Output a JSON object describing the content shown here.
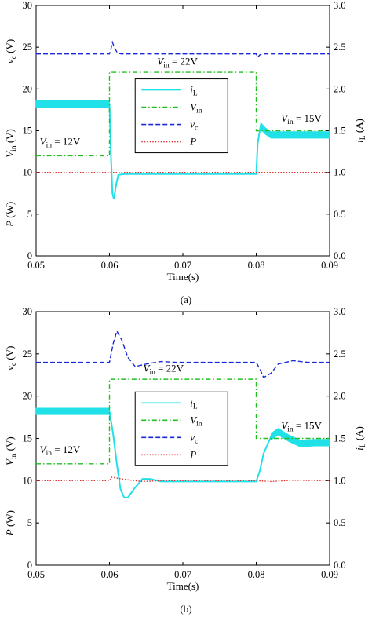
{
  "chart_data": [
    {
      "type": "line",
      "caption": "(a)",
      "xlabel": "Time(s)",
      "xlim": [
        0.05,
        0.09
      ],
      "xticks": [
        "0.05",
        "0.06",
        "0.07",
        "0.08",
        "0.09"
      ],
      "ylim": [
        0,
        30
      ],
      "yticks": [
        "0",
        "5",
        "10",
        "15",
        "20",
        "25",
        "30"
      ],
      "y2lim": [
        0,
        3.0
      ],
      "y2ticks": [
        "0.0",
        "0.5",
        "1.0",
        "1.5",
        "2.0",
        "2.5",
        "3.0"
      ],
      "left_labels": [
        {
          "main": "v",
          "sub": "c",
          "unit": " (V)",
          "y": 24.5
        },
        {
          "main": "V",
          "sub": "in",
          "unit": " (V)",
          "y": 13.5
        },
        {
          "main": "P",
          "sub": "",
          "unit": " (W)",
          "y": 5
        }
      ],
      "right_label": {
        "main": "i",
        "sub": "L",
        "unit": " (A)"
      },
      "legend": [
        {
          "main": "i",
          "sub": "L",
          "color": "#20e0e8",
          "dash": "solid"
        },
        {
          "main": "V",
          "sub": "in",
          "color": "#20c020",
          "dash": "dashdot"
        },
        {
          "main": "v",
          "sub": "c",
          "color": "#1a2ad8",
          "dash": "dash"
        },
        {
          "main": "P",
          "sub": "",
          "color": "#e03030",
          "dash": "dot"
        }
      ],
      "annotations": [
        {
          "main": "V",
          "sub": "in",
          "rest": " = 22V",
          "x": 0.0665,
          "y": 22.9
        },
        {
          "main": "V",
          "sub": "in",
          "rest": " = 12V",
          "x": 0.0505,
          "y": 13.3
        },
        {
          "main": "V",
          "sub": "in",
          "rest": " = 15V",
          "x": 0.0834,
          "y": 16.1
        }
      ],
      "series": [
        {
          "name": "iL",
          "color": "#20e0e8",
          "axis": "right",
          "x": [
            0.05,
            0.06,
            0.0602,
            0.0604,
            0.0606,
            0.0609,
            0.0612,
            0.062,
            0.08,
            0.0802,
            0.0806,
            0.0812,
            0.082,
            0.09
          ],
          "y": [
            1.82,
            1.82,
            1.2,
            0.75,
            0.68,
            0.85,
            0.97,
            0.98,
            0.98,
            1.35,
            1.56,
            1.5,
            1.45,
            1.45
          ],
          "band": [
            [
              0.05,
              0.06,
              0.08
            ],
            [
              0.0803,
              0.09,
              0.08
            ]
          ]
        },
        {
          "name": "Vin",
          "color": "#20c020",
          "axis": "left",
          "x": [
            0.05,
            0.06,
            0.06,
            0.08,
            0.08,
            0.09
          ],
          "y": [
            12,
            12,
            22,
            22,
            15,
            15
          ]
        },
        {
          "name": "vc",
          "color": "#1a2ad8",
          "axis": "left",
          "x": [
            0.05,
            0.06,
            0.0602,
            0.0604,
            0.0607,
            0.0611,
            0.0616,
            0.08,
            0.0802,
            0.0805,
            0.0809,
            0.09
          ],
          "y": [
            24.2,
            24.2,
            24.8,
            25.6,
            24.9,
            24.3,
            24.2,
            24.2,
            23.8,
            24.1,
            24.2,
            24.2
          ]
        },
        {
          "name": "P",
          "color": "#e03030",
          "axis": "left",
          "x": [
            0.05,
            0.09
          ],
          "y": [
            10,
            10
          ]
        }
      ]
    },
    {
      "type": "line",
      "caption": "(b)",
      "xlabel": "Time(s)",
      "xlim": [
        0.05,
        0.09
      ],
      "xticks": [
        "0.05",
        "0.06",
        "0.07",
        "0.08",
        "0.09"
      ],
      "ylim": [
        0,
        30
      ],
      "yticks": [
        "0",
        "5",
        "10",
        "15",
        "20",
        "25",
        "30"
      ],
      "y2lim": [
        0,
        3.0
      ],
      "y2ticks": [
        "0.0",
        "0.5",
        "1.0",
        "1.5",
        "2.0",
        "2.5",
        "3.0"
      ],
      "left_labels": [
        {
          "main": "v",
          "sub": "c",
          "unit": " (V)",
          "y": 24.5
        },
        {
          "main": "V",
          "sub": "in",
          "unit": " (V)",
          "y": 13.5
        },
        {
          "main": "P",
          "sub": "",
          "unit": " (W)",
          "y": 5
        }
      ],
      "right_label": {
        "main": "i",
        "sub": "L",
        "unit": " (A)"
      },
      "legend": [
        {
          "main": "i",
          "sub": "L",
          "color": "#20e0e8",
          "dash": "solid"
        },
        {
          "main": "V",
          "sub": "in",
          "color": "#20c020",
          "dash": "dashdot"
        },
        {
          "main": "v",
          "sub": "c",
          "color": "#1a2ad8",
          "dash": "dash"
        },
        {
          "main": "P",
          "sub": "",
          "color": "#e03030",
          "dash": "dot"
        }
      ],
      "annotations": [
        {
          "main": "V",
          "sub": "in",
          "rest": " = 22V",
          "x": 0.0646,
          "y": 22.9
        },
        {
          "main": "V",
          "sub": "in",
          "rest": " = 12V",
          "x": 0.0505,
          "y": 13.3
        },
        {
          "main": "V",
          "sub": "in",
          "rest": " = 15V",
          "x": 0.0834,
          "y": 16.1
        }
      ],
      "series": [
        {
          "name": "iL",
          "color": "#20e0e8",
          "axis": "right",
          "x": [
            0.05,
            0.06,
            0.0605,
            0.061,
            0.0615,
            0.062,
            0.0625,
            0.0635,
            0.0645,
            0.0655,
            0.067,
            0.08,
            0.0805,
            0.081,
            0.082,
            0.083,
            0.0845,
            0.086,
            0.088,
            0.09
          ],
          "y": [
            1.82,
            1.82,
            1.55,
            1.2,
            0.9,
            0.8,
            0.8,
            0.92,
            1.02,
            1.02,
            0.99,
            0.99,
            1.12,
            1.32,
            1.52,
            1.58,
            1.5,
            1.44,
            1.45,
            1.45
          ],
          "band": [
            [
              0.05,
              0.06,
              0.08
            ],
            [
              0.0818,
              0.09,
              0.08
            ]
          ]
        },
        {
          "name": "Vin",
          "color": "#20c020",
          "axis": "left",
          "x": [
            0.05,
            0.06,
            0.06,
            0.08,
            0.08,
            0.09
          ],
          "y": [
            12,
            12,
            22,
            22,
            15,
            15
          ]
        },
        {
          "name": "vc",
          "color": "#1a2ad8",
          "axis": "left",
          "x": [
            0.05,
            0.06,
            0.0605,
            0.061,
            0.0617,
            0.0625,
            0.0635,
            0.065,
            0.067,
            0.069,
            0.08,
            0.0805,
            0.081,
            0.082,
            0.083,
            0.085,
            0.087,
            0.09
          ],
          "y": [
            24.0,
            24.0,
            26.2,
            27.7,
            26.6,
            24.6,
            23.5,
            23.8,
            24.1,
            24.0,
            24.0,
            23.2,
            22.2,
            22.7,
            23.8,
            24.2,
            24.0,
            24.0
          ]
        },
        {
          "name": "P",
          "color": "#e03030",
          "axis": "left",
          "x": [
            0.05,
            0.06,
            0.0603,
            0.0625,
            0.0645,
            0.067,
            0.08,
            0.082,
            0.085,
            0.09
          ],
          "y": [
            10.0,
            10.0,
            10.4,
            10.1,
            9.9,
            10.0,
            10.0,
            9.9,
            10.05,
            10.0
          ]
        }
      ]
    }
  ]
}
